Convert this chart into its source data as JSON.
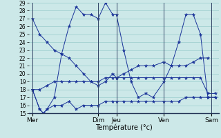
{
  "xlabel": "Température (°c)",
  "background_color": "#cce8e8",
  "grid_color": "#99cccc",
  "line_color": "#1a3399",
  "ylim": [
    15,
    29
  ],
  "xlim": [
    0,
    26
  ],
  "yticks": [
    15,
    16,
    17,
    18,
    19,
    20,
    21,
    22,
    23,
    24,
    25,
    26,
    27,
    28,
    29
  ],
  "day_labels": [
    "Mer",
    "Dim",
    "Jeu",
    "Ven",
    "Sam"
  ],
  "day_positions": [
    0.5,
    9.5,
    12.0,
    18.5,
    25.0
  ],
  "vline_positions": [
    0.5,
    9.5,
    12.0,
    18.5,
    25.0
  ],
  "series": [
    {
      "x": [
        0.5,
        1.5,
        2.5,
        3.5,
        4.5,
        5.5,
        6.5,
        7.5,
        8.5,
        9.5,
        10.5,
        11.5,
        12.0,
        13.0,
        14.0,
        15.0,
        16.0,
        17.0,
        18.5,
        19.5,
        20.5,
        21.5,
        22.5,
        23.5,
        24.5
      ],
      "y": [
        27,
        25,
        24,
        23,
        22.5,
        22,
        21,
        20,
        19,
        18.5,
        19,
        20,
        19.5,
        20,
        20.5,
        21,
        21,
        21,
        21.5,
        21,
        21,
        21,
        21.5,
        22,
        22
      ]
    },
    {
      "x": [
        0.5,
        1.5,
        2.0,
        2.5,
        3.5,
        4.5,
        5.5,
        6.5,
        7.5,
        8.5,
        9.5,
        10.5,
        11.5,
        12.0,
        13.0,
        14.0,
        15.0,
        16.0,
        17.0,
        18.5,
        19.5,
        20.5,
        21.5,
        22.5,
        23.5,
        24.5,
        25.5
      ],
      "y": [
        18,
        15.5,
        15,
        15.5,
        17,
        22.5,
        26,
        28.5,
        27.5,
        27.5,
        27,
        29,
        27.5,
        27.5,
        23,
        19,
        17,
        17.5,
        17,
        19,
        21,
        24,
        27.5,
        27.5,
        25,
        17,
        17
      ]
    },
    {
      "x": [
        0.5,
        1.5,
        2.0,
        2.5,
        3.5,
        4.5,
        5.5,
        6.5,
        7.5,
        8.5,
        9.5,
        10.5,
        11.5,
        12.0,
        13.0,
        14.0,
        15.0,
        16.0,
        17.0,
        18.5,
        19.5,
        20.5,
        21.5,
        22.5,
        23.5,
        24.5,
        25.5
      ],
      "y": [
        18,
        15.5,
        15.0,
        15.5,
        16.0,
        16.0,
        16.5,
        15.5,
        16.0,
        16.0,
        16.0,
        16.5,
        16.5,
        16.5,
        16.5,
        16.5,
        16.5,
        16.5,
        16.5,
        16.5,
        16.5,
        16.5,
        17.0,
        17.0,
        17.0,
        17.0,
        17.0
      ]
    },
    {
      "x": [
        0.5,
        1.5,
        2.5,
        3.5,
        4.5,
        5.5,
        6.5,
        7.5,
        8.5,
        9.5,
        10.5,
        11.5,
        12.0,
        13.0,
        14.0,
        15.0,
        16.0,
        17.0,
        18.5,
        19.5,
        20.5,
        21.5,
        22.5,
        23.5,
        24.5,
        25.5
      ],
      "y": [
        18,
        18,
        18.5,
        19,
        19,
        19,
        19,
        19,
        19,
        19,
        19.5,
        19.5,
        19.5,
        19.5,
        19.5,
        19.5,
        19.5,
        19.5,
        19.5,
        19.5,
        19.5,
        19.5,
        19.5,
        19.5,
        17.5,
        17.5
      ]
    }
  ]
}
